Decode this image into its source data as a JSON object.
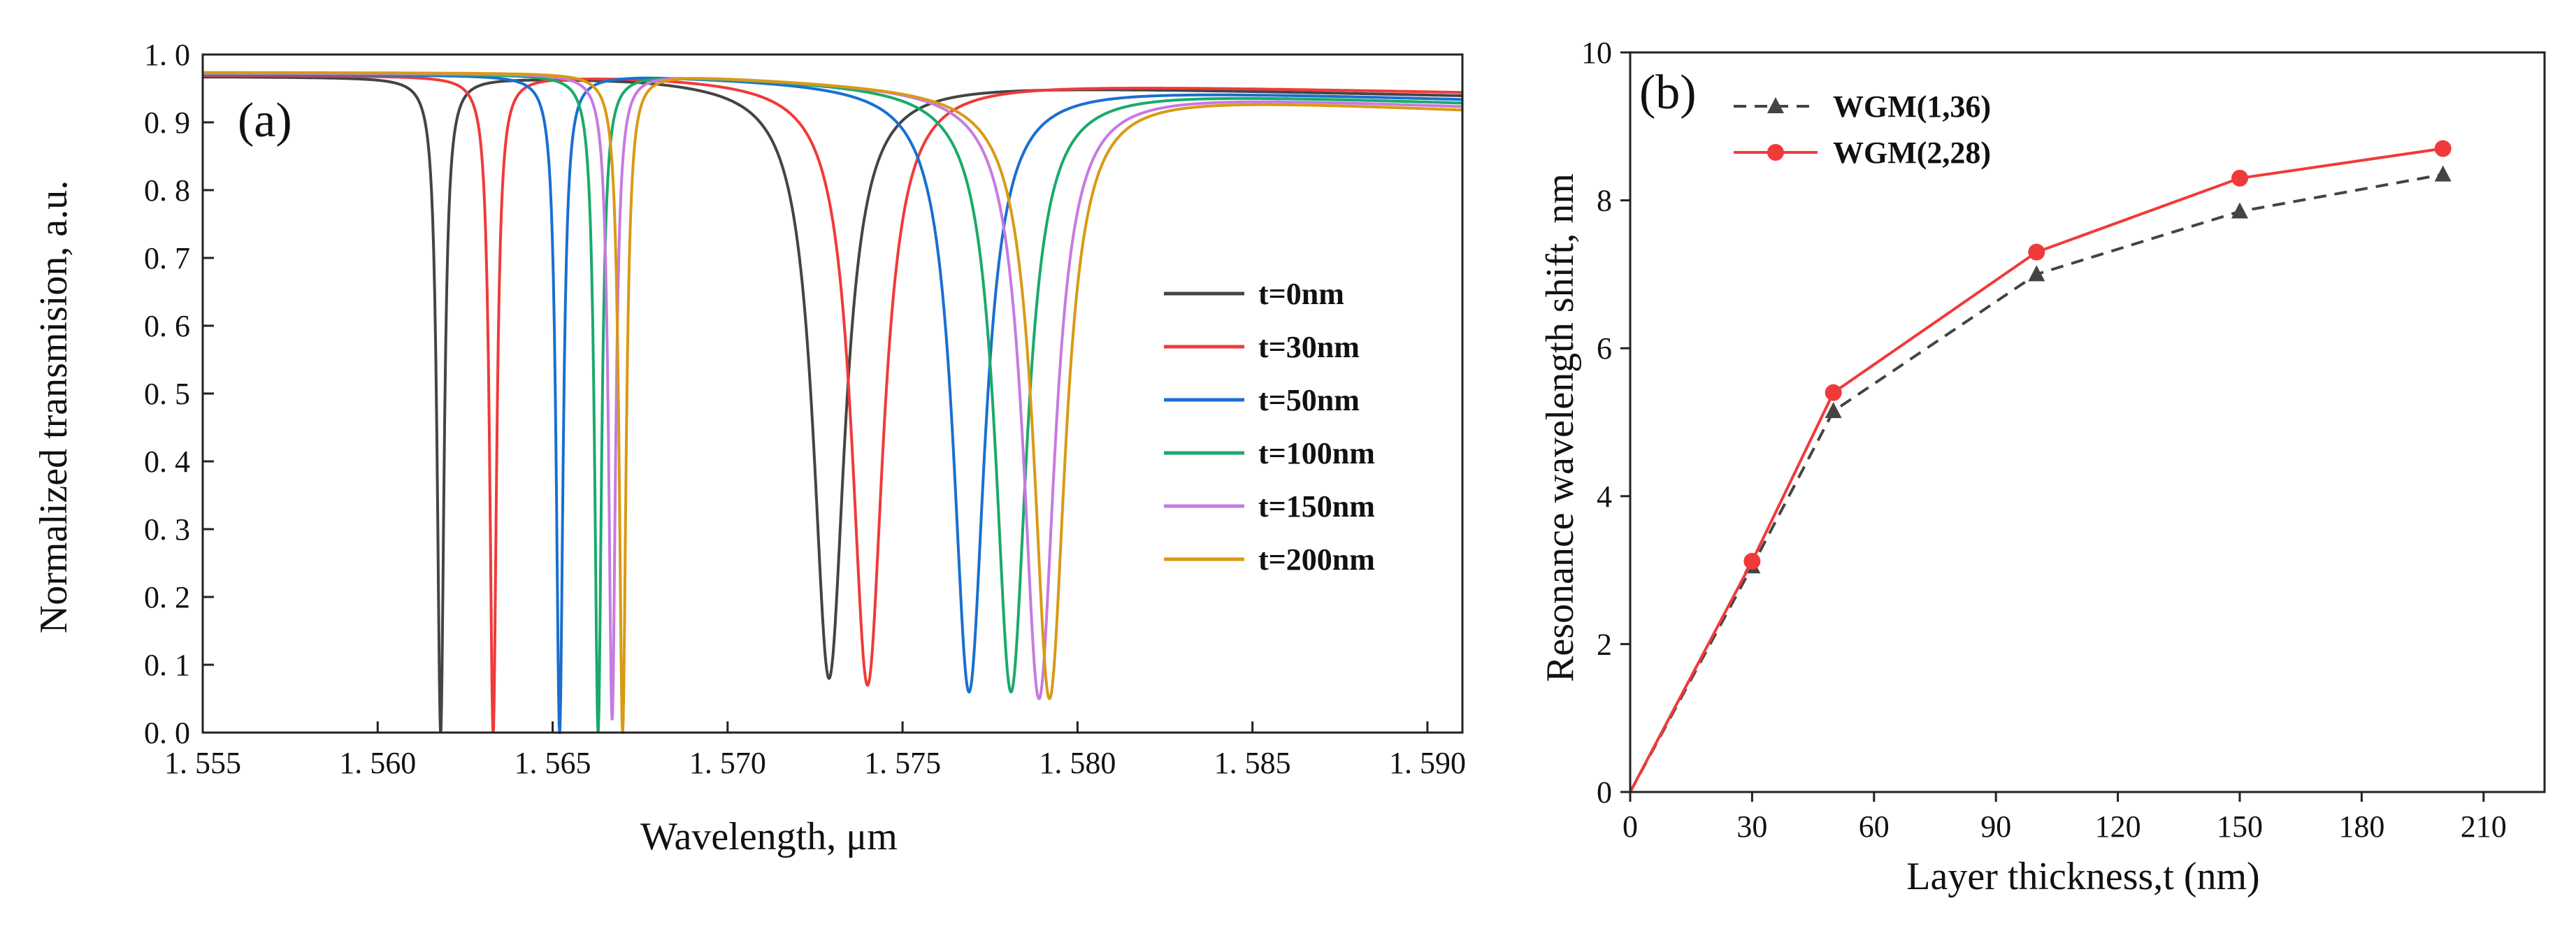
{
  "chart_data": [
    {
      "type": "line",
      "panel": "(a)",
      "xlabel": "Wavelength,   μm",
      "ylabel": "Normalized transmision, a.u.",
      "xlim": [
        1.555,
        1.591
      ],
      "ylim": [
        0.0,
        1.0
      ],
      "xticks": [
        "1. 555",
        "1. 560",
        "1. 565",
        "1. 570",
        "1. 575",
        "1. 580",
        "1. 585",
        "1. 590"
      ],
      "xtick_values": [
        1.555,
        1.56,
        1.565,
        1.57,
        1.575,
        1.58,
        1.585,
        1.59
      ],
      "yticks": [
        "0. 0",
        "0. 1",
        "0. 2",
        "0. 3",
        "0. 4",
        "0. 5",
        "0. 6",
        "0. 7",
        "0. 8",
        "0. 9",
        "1. 0"
      ],
      "ytick_values": [
        0.0,
        0.1,
        0.2,
        0.3,
        0.4,
        0.5,
        0.6,
        0.7,
        0.8,
        0.9,
        1.0
      ],
      "legend_position": "right",
      "series": [
        {
          "name": "t=0nm",
          "color": "#444444",
          "baseline_left": 0.968,
          "baseline_right": 0.94,
          "dips": [
            {
              "center": 1.5618,
              "min": 0.0,
              "width": 0.00012
            },
            {
              "center": 1.5729,
              "min": 0.08,
              "width": 0.00055
            }
          ]
        },
        {
          "name": "t=30nm",
          "color": "#f03a3a",
          "baseline_left": 0.97,
          "baseline_right": 0.945,
          "dips": [
            {
              "center": 1.5633,
              "min": 0.0,
              "width": 0.00012
            },
            {
              "center": 1.574,
              "min": 0.07,
              "width": 0.00055
            }
          ]
        },
        {
          "name": "t=50nm",
          "color": "#1a6fd0",
          "baseline_left": 0.971,
          "baseline_right": 0.935,
          "dips": [
            {
              "center": 1.5652,
              "min": 0.0,
              "width": 0.00012
            },
            {
              "center": 1.5769,
              "min": 0.06,
              "width": 0.00055
            }
          ]
        },
        {
          "name": "t=100nm",
          "color": "#1aaa6a",
          "baseline_left": 0.972,
          "baseline_right": 0.93,
          "dips": [
            {
              "center": 1.5663,
              "min": 0.0,
              "width": 0.00012
            },
            {
              "center": 1.5781,
              "min": 0.06,
              "width": 0.00055
            }
          ]
        },
        {
          "name": "t=150nm",
          "color": "#c77ae0",
          "baseline_left": 0.973,
          "baseline_right": 0.925,
          "dips": [
            {
              "center": 1.5667,
              "min": 0.02,
              "width": 0.00012
            },
            {
              "center": 1.5789,
              "min": 0.05,
              "width": 0.00055
            }
          ]
        },
        {
          "name": "t=200nm",
          "color": "#d99a14",
          "baseline_left": 0.974,
          "baseline_right": 0.92,
          "dips": [
            {
              "center": 1.567,
              "min": 0.0,
              "width": 0.00012
            },
            {
              "center": 1.5792,
              "min": 0.05,
              "width": 0.00055
            }
          ]
        }
      ]
    },
    {
      "type": "line",
      "panel": "(b)",
      "xlabel": "Layer thickness,t (nm)",
      "ylabel": "Resonance wavelength shift, nm",
      "xlim": [
        0,
        225
      ],
      "ylim": [
        0,
        10
      ],
      "xticks": [
        "0",
        "30",
        "60",
        "90",
        "120",
        "150",
        "180",
        "210"
      ],
      "xtick_values": [
        0,
        30,
        60,
        90,
        120,
        150,
        180,
        210
      ],
      "yticks": [
        "0",
        "2",
        "4",
        "6",
        "8",
        "10"
      ],
      "ytick_values": [
        0,
        2,
        4,
        6,
        8,
        10
      ],
      "legend_position": "top-left",
      "x": [
        0,
        30,
        50,
        100,
        150,
        200
      ],
      "series": [
        {
          "name": "WGM(1,36)",
          "color": "#444444",
          "style": "dashed",
          "marker": "triangle",
          "values": [
            0,
            3.05,
            5.15,
            7.0,
            7.85,
            8.35
          ]
        },
        {
          "name": "WGM(2,28)",
          "color": "#f03a3a",
          "style": "solid",
          "marker": "circle",
          "values": [
            0,
            3.12,
            5.4,
            7.3,
            8.3,
            8.7
          ]
        }
      ]
    }
  ]
}
